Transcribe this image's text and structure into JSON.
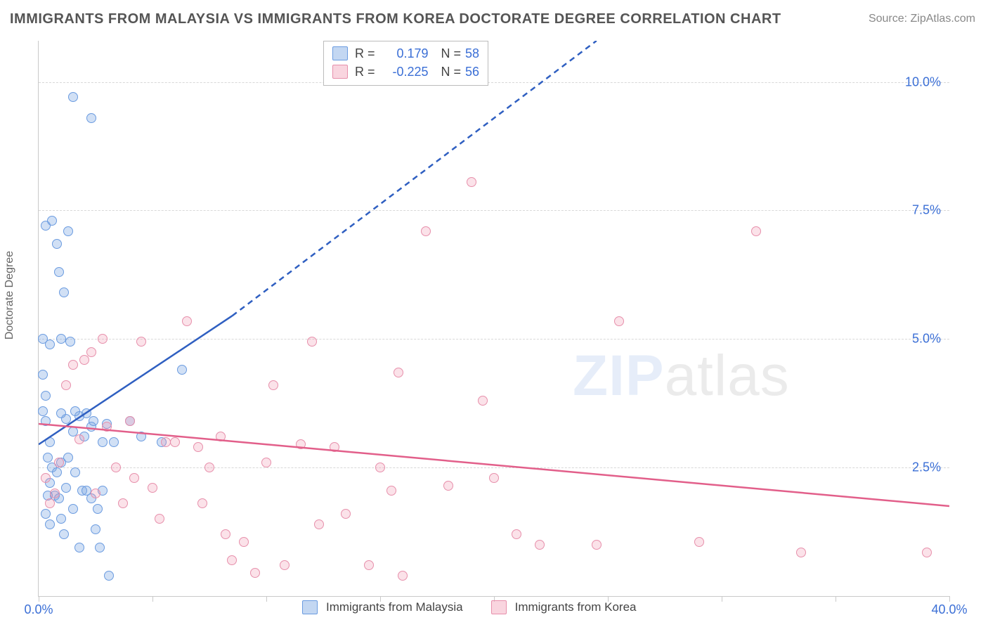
{
  "title": "IMMIGRANTS FROM MALAYSIA VS IMMIGRANTS FROM KOREA DOCTORATE DEGREE CORRELATION CHART",
  "source_prefix": "Source: ",
  "source_name": "ZipAtlas.com",
  "y_axis_label": "Doctorate Degree",
  "watermark_a": "ZIP",
  "watermark_b": "atlas",
  "chart": {
    "type": "scatter",
    "xlim": [
      0,
      40
    ],
    "ylim": [
      0,
      10.8
    ],
    "x_ticks": [
      0,
      5,
      10,
      15,
      20,
      25,
      30,
      35,
      40
    ],
    "x_tick_labels_shown": {
      "0": "0.0%",
      "40": "40.0%"
    },
    "y_gridlines": [
      2.5,
      5.0,
      7.5,
      10.0
    ],
    "y_tick_labels": {
      "2.5": "2.5%",
      "5.0": "5.0%",
      "7.5": "7.5%",
      "10.0": "10.0%"
    },
    "background_color": "#ffffff",
    "grid_color": "#d8d8d8",
    "axis_color": "#c9c9c9",
    "tick_label_color": "#3b6fd6",
    "tick_fontsize": 18,
    "marker_radius": 7,
    "series": [
      {
        "id": "malaysia",
        "label": "Immigrants from Malaysia",
        "color_fill": "rgba(123,167,226,0.35)",
        "color_stroke": "#6a9be0",
        "r_value": "0.179",
        "n_value": "58",
        "regression": {
          "solid_from": [
            0,
            2.95
          ],
          "solid_to": [
            8.5,
            5.45
          ],
          "dashed_to": [
            24.5,
            10.8
          ],
          "color": "#2f5fc1",
          "width": 2.5,
          "dash": "8,6"
        },
        "points": [
          [
            0.2,
            3.6
          ],
          [
            0.3,
            3.9
          ],
          [
            0.3,
            3.4
          ],
          [
            0.5,
            3.0
          ],
          [
            0.4,
            2.7
          ],
          [
            0.6,
            2.5
          ],
          [
            0.5,
            2.2
          ],
          [
            0.4,
            1.95
          ],
          [
            0.7,
            1.95
          ],
          [
            0.9,
            1.9
          ],
          [
            0.3,
            1.6
          ],
          [
            0.5,
            1.4
          ],
          [
            1.0,
            1.5
          ],
          [
            0.2,
            4.3
          ],
          [
            0.5,
            4.9
          ],
          [
            0.2,
            5.0
          ],
          [
            0.3,
            7.2
          ],
          [
            0.6,
            7.3
          ],
          [
            0.8,
            6.85
          ],
          [
            0.9,
            6.3
          ],
          [
            1.1,
            5.9
          ],
          [
            1.3,
            7.1
          ],
          [
            1.5,
            9.7
          ],
          [
            2.3,
            9.3
          ],
          [
            1.0,
            5.0
          ],
          [
            1.4,
            4.95
          ],
          [
            1.9,
            2.05
          ],
          [
            2.1,
            2.05
          ],
          [
            2.3,
            1.9
          ],
          [
            2.6,
            1.7
          ],
          [
            2.8,
            2.05
          ],
          [
            2.5,
            1.3
          ],
          [
            2.7,
            0.95
          ],
          [
            1.8,
            0.95
          ],
          [
            3.1,
            0.4
          ],
          [
            1.5,
            3.2
          ],
          [
            1.8,
            3.5
          ],
          [
            1.2,
            3.45
          ],
          [
            1.0,
            3.55
          ],
          [
            2.0,
            3.1
          ],
          [
            2.3,
            3.3
          ],
          [
            1.6,
            2.4
          ],
          [
            1.2,
            2.1
          ],
          [
            0.8,
            2.4
          ],
          [
            1.0,
            2.6
          ],
          [
            1.3,
            2.7
          ],
          [
            1.6,
            3.6
          ],
          [
            2.1,
            3.55
          ],
          [
            2.4,
            3.4
          ],
          [
            2.8,
            3.0
          ],
          [
            3.0,
            3.35
          ],
          [
            3.3,
            3.0
          ],
          [
            4.0,
            3.4
          ],
          [
            4.5,
            3.1
          ],
          [
            5.4,
            3.0
          ],
          [
            6.3,
            4.4
          ],
          [
            1.1,
            1.2
          ],
          [
            1.5,
            1.7
          ]
        ]
      },
      {
        "id": "korea",
        "label": "Immigrants from Korea",
        "color_fill": "rgba(240,150,175,0.28)",
        "color_stroke": "#e78fab",
        "r_value": "-0.225",
        "n_value": "56",
        "regression": {
          "solid_from": [
            0,
            3.35
          ],
          "solid_to": [
            40,
            1.75
          ],
          "color": "#e25f8a",
          "width": 2.5
        },
        "points": [
          [
            0.5,
            1.8
          ],
          [
            0.7,
            2.0
          ],
          [
            0.3,
            2.3
          ],
          [
            0.9,
            2.6
          ],
          [
            1.2,
            4.1
          ],
          [
            1.5,
            4.5
          ],
          [
            2.0,
            4.6
          ],
          [
            2.3,
            4.75
          ],
          [
            2.8,
            5.0
          ],
          [
            1.8,
            3.05
          ],
          [
            2.5,
            2.0
          ],
          [
            3.0,
            3.3
          ],
          [
            3.4,
            2.5
          ],
          [
            4.0,
            3.4
          ],
          [
            4.5,
            4.95
          ],
          [
            5.0,
            2.1
          ],
          [
            5.3,
            1.5
          ],
          [
            5.6,
            3.0
          ],
          [
            6.0,
            3.0
          ],
          [
            6.5,
            5.35
          ],
          [
            7.0,
            2.9
          ],
          [
            7.2,
            1.8
          ],
          [
            7.5,
            2.5
          ],
          [
            8.0,
            3.1
          ],
          [
            8.2,
            1.2
          ],
          [
            8.5,
            0.7
          ],
          [
            9.0,
            1.05
          ],
          [
            9.5,
            0.45
          ],
          [
            10.0,
            2.6
          ],
          [
            10.3,
            4.1
          ],
          [
            10.8,
            0.6
          ],
          [
            11.5,
            2.95
          ],
          [
            12.0,
            4.95
          ],
          [
            12.3,
            1.4
          ],
          [
            13.0,
            2.9
          ],
          [
            13.5,
            1.6
          ],
          [
            14.5,
            0.6
          ],
          [
            15.0,
            2.5
          ],
          [
            15.5,
            2.05
          ],
          [
            16.0,
            0.4
          ],
          [
            15.8,
            4.35
          ],
          [
            17.0,
            7.1
          ],
          [
            18.0,
            2.15
          ],
          [
            19.0,
            8.05
          ],
          [
            19.5,
            3.8
          ],
          [
            20.0,
            2.3
          ],
          [
            21.0,
            1.2
          ],
          [
            22.0,
            1.0
          ],
          [
            24.5,
            1.0
          ],
          [
            25.5,
            5.35
          ],
          [
            29.0,
            1.05
          ],
          [
            31.5,
            7.1
          ],
          [
            33.5,
            0.85
          ],
          [
            39.0,
            0.85
          ],
          [
            3.7,
            1.8
          ],
          [
            4.2,
            2.3
          ]
        ]
      }
    ]
  },
  "legend_top": {
    "r_label": "R =",
    "n_label": "N ="
  },
  "legend_bottom": {
    "items": [
      "Immigrants from Malaysia",
      "Immigrants from Korea"
    ]
  }
}
